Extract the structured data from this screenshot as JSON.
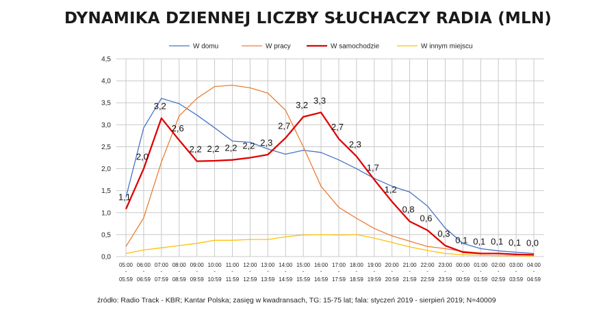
{
  "title": "DYNAMIKA DZIENNEJ LICZBY SŁUCHACZY RADIA (MLN)",
  "source": "źródło: Radio Track - KBR; Kantar Polska; zasięg w kwadransach,  TG: 15-75 lat; fala: styczeń 2019 - sierpień 2019; N=40009",
  "chart_data": {
    "type": "line",
    "title": "DYNAMIKA DZIENNEJ LICZBY SŁUCHACZY RADIA (MLN)",
    "xlabel": "",
    "ylabel": "",
    "ylim": [
      0,
      4.5
    ],
    "yticks": [
      "0,0",
      "0,5",
      "1,0",
      "1,5",
      "2,0",
      "2,5",
      "3,0",
      "3,5",
      "4,0",
      "4,5"
    ],
    "grid": true,
    "legend_position": "top",
    "x": [
      "05:00 - 05:59",
      "06:00 - 06:59",
      "07:00 - 07:59",
      "08:00 - 08:59",
      "09:00 - 09:59",
      "10:00 - 10:59",
      "11:00 - 11:59",
      "12:00 - 12:59",
      "13:00 - 13:59",
      "14:00 - 14:59",
      "15:00 - 15:59",
      "16:00 - 16:59",
      "17:00 - 17:59",
      "18:00 - 18:59",
      "19:00 - 19:59",
      "20:00 - 20:59",
      "21:00 - 21:59",
      "22:00 - 22:59",
      "23:00 - 23:59",
      "00:00 - 00:59",
      "01:00 - 01:59",
      "02:00 - 02:59",
      "03:00 - 03:59",
      "04:00 - 04:59"
    ],
    "x_top": [
      "05:00",
      "06:00",
      "07:00",
      "08:00",
      "09:00",
      "10:00",
      "11:00",
      "12:00",
      "13:00",
      "14:00",
      "15:00",
      "16:00",
      "17:00",
      "18:00",
      "19:00",
      "20:00",
      "21:00",
      "22:00",
      "23:00",
      "00:00",
      "01:00",
      "02:00",
      "03:00",
      "04:00"
    ],
    "x_bottom": [
      "05:59",
      "06:59",
      "07:59",
      "08:59",
      "09:59",
      "10:59",
      "11:59",
      "12:59",
      "13:59",
      "14:59",
      "15:59",
      "16:59",
      "17:59",
      "18:59",
      "19:59",
      "20:59",
      "21:59",
      "22:59",
      "23:59",
      "00:59",
      "01:59",
      "02:59",
      "03:59",
      "04:59"
    ],
    "x_sep": "-",
    "series": [
      {
        "name": "W domu",
        "color": "#4472C4",
        "width": 1.3,
        "values": [
          1.35,
          2.93,
          3.6,
          3.48,
          3.22,
          2.93,
          2.63,
          2.6,
          2.45,
          2.33,
          2.42,
          2.37,
          2.2,
          2.0,
          1.78,
          1.6,
          1.47,
          1.15,
          0.65,
          0.3,
          0.18,
          0.13,
          0.1,
          0.07
        ]
      },
      {
        "name": "W pracy",
        "color": "#ED7D31",
        "width": 1.3,
        "values": [
          0.23,
          0.88,
          2.15,
          3.2,
          3.6,
          3.87,
          3.9,
          3.84,
          3.72,
          3.33,
          2.5,
          1.6,
          1.12,
          0.87,
          0.64,
          0.47,
          0.35,
          0.23,
          0.18,
          0.12,
          0.08,
          0.06,
          0.05,
          0.04
        ]
      },
      {
        "name": "W samochodzie",
        "color": "#E00000",
        "width": 2.3,
        "values": [
          1.08,
          2.0,
          3.15,
          2.65,
          2.17,
          2.18,
          2.2,
          2.25,
          2.32,
          2.7,
          3.18,
          3.28,
          2.68,
          2.28,
          1.75,
          1.25,
          0.8,
          0.6,
          0.25,
          0.1,
          0.07,
          0.07,
          0.05,
          0.04
        ]
      },
      {
        "name": "W innym miejscu",
        "color": "#FFC000",
        "width": 1.3,
        "values": [
          0.07,
          0.15,
          0.2,
          0.25,
          0.3,
          0.37,
          0.37,
          0.39,
          0.39,
          0.45,
          0.49,
          0.5,
          0.49,
          0.5,
          0.42,
          0.32,
          0.22,
          0.14,
          0.07,
          0.04,
          0.03,
          0.02,
          0.02,
          0.01
        ]
      }
    ],
    "data_labels": {
      "series": "W samochodzie",
      "labels": [
        "1,1",
        "2,0",
        "3,2",
        "2,6",
        "2,2",
        "2,2",
        "2,2",
        "2,2",
        "2,3",
        "2,7",
        "3,2",
        "3,3",
        "2,7",
        "2,3",
        "1,7",
        "1,2",
        "0,8",
        "0,6",
        "0,3",
        "0,1",
        "0,1",
        "0,1",
        "0,1",
        "0,0"
      ]
    }
  }
}
